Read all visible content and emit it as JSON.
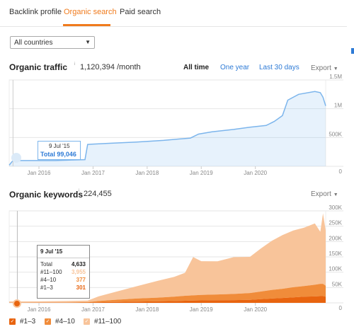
{
  "tabs": [
    {
      "label": "Backlink profile",
      "active": false
    },
    {
      "label": "Organic search",
      "active": true
    },
    {
      "label": "Paid search",
      "active": false
    }
  ],
  "country_filter": {
    "value": "All countries"
  },
  "traffic": {
    "title": "Organic traffic",
    "value": "1,120,394 /month",
    "export_label": "Export",
    "ranges": [
      {
        "label": "All time",
        "active": true
      },
      {
        "label": "One year",
        "active": false
      },
      {
        "label": "Last 30 days",
        "active": false
      }
    ],
    "tooltip": {
      "date": "9 Jul '15",
      "total": "Total 99,046"
    }
  },
  "keywords": {
    "title": "Organic keywords",
    "value": "224,455",
    "export_label": "Export",
    "tooltip": {
      "date": "9 Jul '15",
      "rows": [
        {
          "label": "Total",
          "value": "4,633",
          "color": "#222222"
        },
        {
          "label": "#11–100",
          "value": "3,955",
          "color": "#f8c49a"
        },
        {
          "label": "#4–10",
          "value": "377",
          "color": "#f08c3a"
        },
        {
          "label": "#1–3",
          "value": "301",
          "color": "#e8640f"
        }
      ]
    },
    "legend": [
      {
        "label": "#1–3",
        "color": "#e8640f"
      },
      {
        "label": "#4–10",
        "color": "#f08c3a"
      },
      {
        "label": "#11–100",
        "color": "#f8c49a"
      }
    ]
  },
  "chart_data": [
    {
      "type": "area",
      "title": "Organic traffic",
      "x_ticks": [
        "Jan 2016",
        "Jan 2017",
        "Jan 2018",
        "Jan 2019",
        "Jan 2020"
      ],
      "y_ticks": [
        "0",
        "500K",
        "1M",
        "1.5M"
      ],
      "ylim": [
        0,
        1500000
      ],
      "xlim": [
        2015.45,
        2021.3
      ],
      "color": "#7cb5ec",
      "series": [
        {
          "points": [
            [
              2015.45,
              20000
            ],
            [
              2015.52,
              99046
            ],
            [
              2016.3,
              100000
            ],
            [
              2016.6,
              110000
            ],
            [
              2016.85,
              115000
            ],
            [
              2016.9,
              380000
            ],
            [
              2017.3,
              400000
            ],
            [
              2017.8,
              420000
            ],
            [
              2018.3,
              450000
            ],
            [
              2018.8,
              490000
            ],
            [
              2018.95,
              560000
            ],
            [
              2019.2,
              600000
            ],
            [
              2019.6,
              640000
            ],
            [
              2019.9,
              680000
            ],
            [
              2020.2,
              710000
            ],
            [
              2020.35,
              780000
            ],
            [
              2020.5,
              880000
            ],
            [
              2020.6,
              1150000
            ],
            [
              2020.8,
              1250000
            ],
            [
              2021.1,
              1300000
            ],
            [
              2021.2,
              1280000
            ],
            [
              2021.25,
              1200000
            ],
            [
              2021.3,
              1050000
            ]
          ]
        }
      ]
    },
    {
      "type": "area",
      "title": "Organic keywords",
      "x_ticks": [
        "Jan 2016",
        "Jan 2017",
        "Jan 2018",
        "Jan 2019",
        "Jan 2020"
      ],
      "y_ticks": [
        "0",
        "50K",
        "100K",
        "150K",
        "200K",
        "250K",
        "300K"
      ],
      "ylim": [
        0,
        300000
      ],
      "xlim": [
        2015.45,
        2021.3
      ],
      "x": [
        2015.45,
        2015.6,
        2016.0,
        2016.5,
        2016.9,
        2017.1,
        2017.4,
        2017.8,
        2018.2,
        2018.5,
        2018.7,
        2018.85,
        2019.0,
        2019.3,
        2019.6,
        2019.9,
        2020.1,
        2020.3,
        2020.5,
        2020.7,
        2020.9,
        2021.1,
        2021.2,
        2021.25,
        2021.3
      ],
      "series": [
        {
          "name": "#1–3",
          "color": "#e8640f",
          "values": [
            300,
            301,
            400,
            600,
            1000,
            2000,
            3000,
            4000,
            5000,
            6000,
            7000,
            7500,
            8000,
            8500,
            9000,
            10000,
            12000,
            14000,
            16000,
            18000,
            20000,
            21000,
            22000,
            22000,
            20000
          ]
        },
        {
          "name": "#4–10",
          "color": "#f08c3a",
          "values": [
            370,
            377,
            500,
            800,
            1500,
            4000,
            7000,
            10000,
            12000,
            14000,
            16000,
            17000,
            18000,
            19000,
            20000,
            22000,
            25000,
            28000,
            30000,
            33000,
            35000,
            38000,
            40000,
            40000,
            36000
          ]
        },
        {
          "name": "#11–100",
          "color": "#f8c49a",
          "values": [
            3900,
            3955,
            4000,
            4500,
            5000,
            15000,
            25000,
            40000,
            55000,
            65000,
            75000,
            125000,
            110000,
            108000,
            120000,
            118000,
            140000,
            160000,
            175000,
            185000,
            190000,
            200000,
            170000,
            230000,
            180000
          ]
        }
      ]
    }
  ]
}
